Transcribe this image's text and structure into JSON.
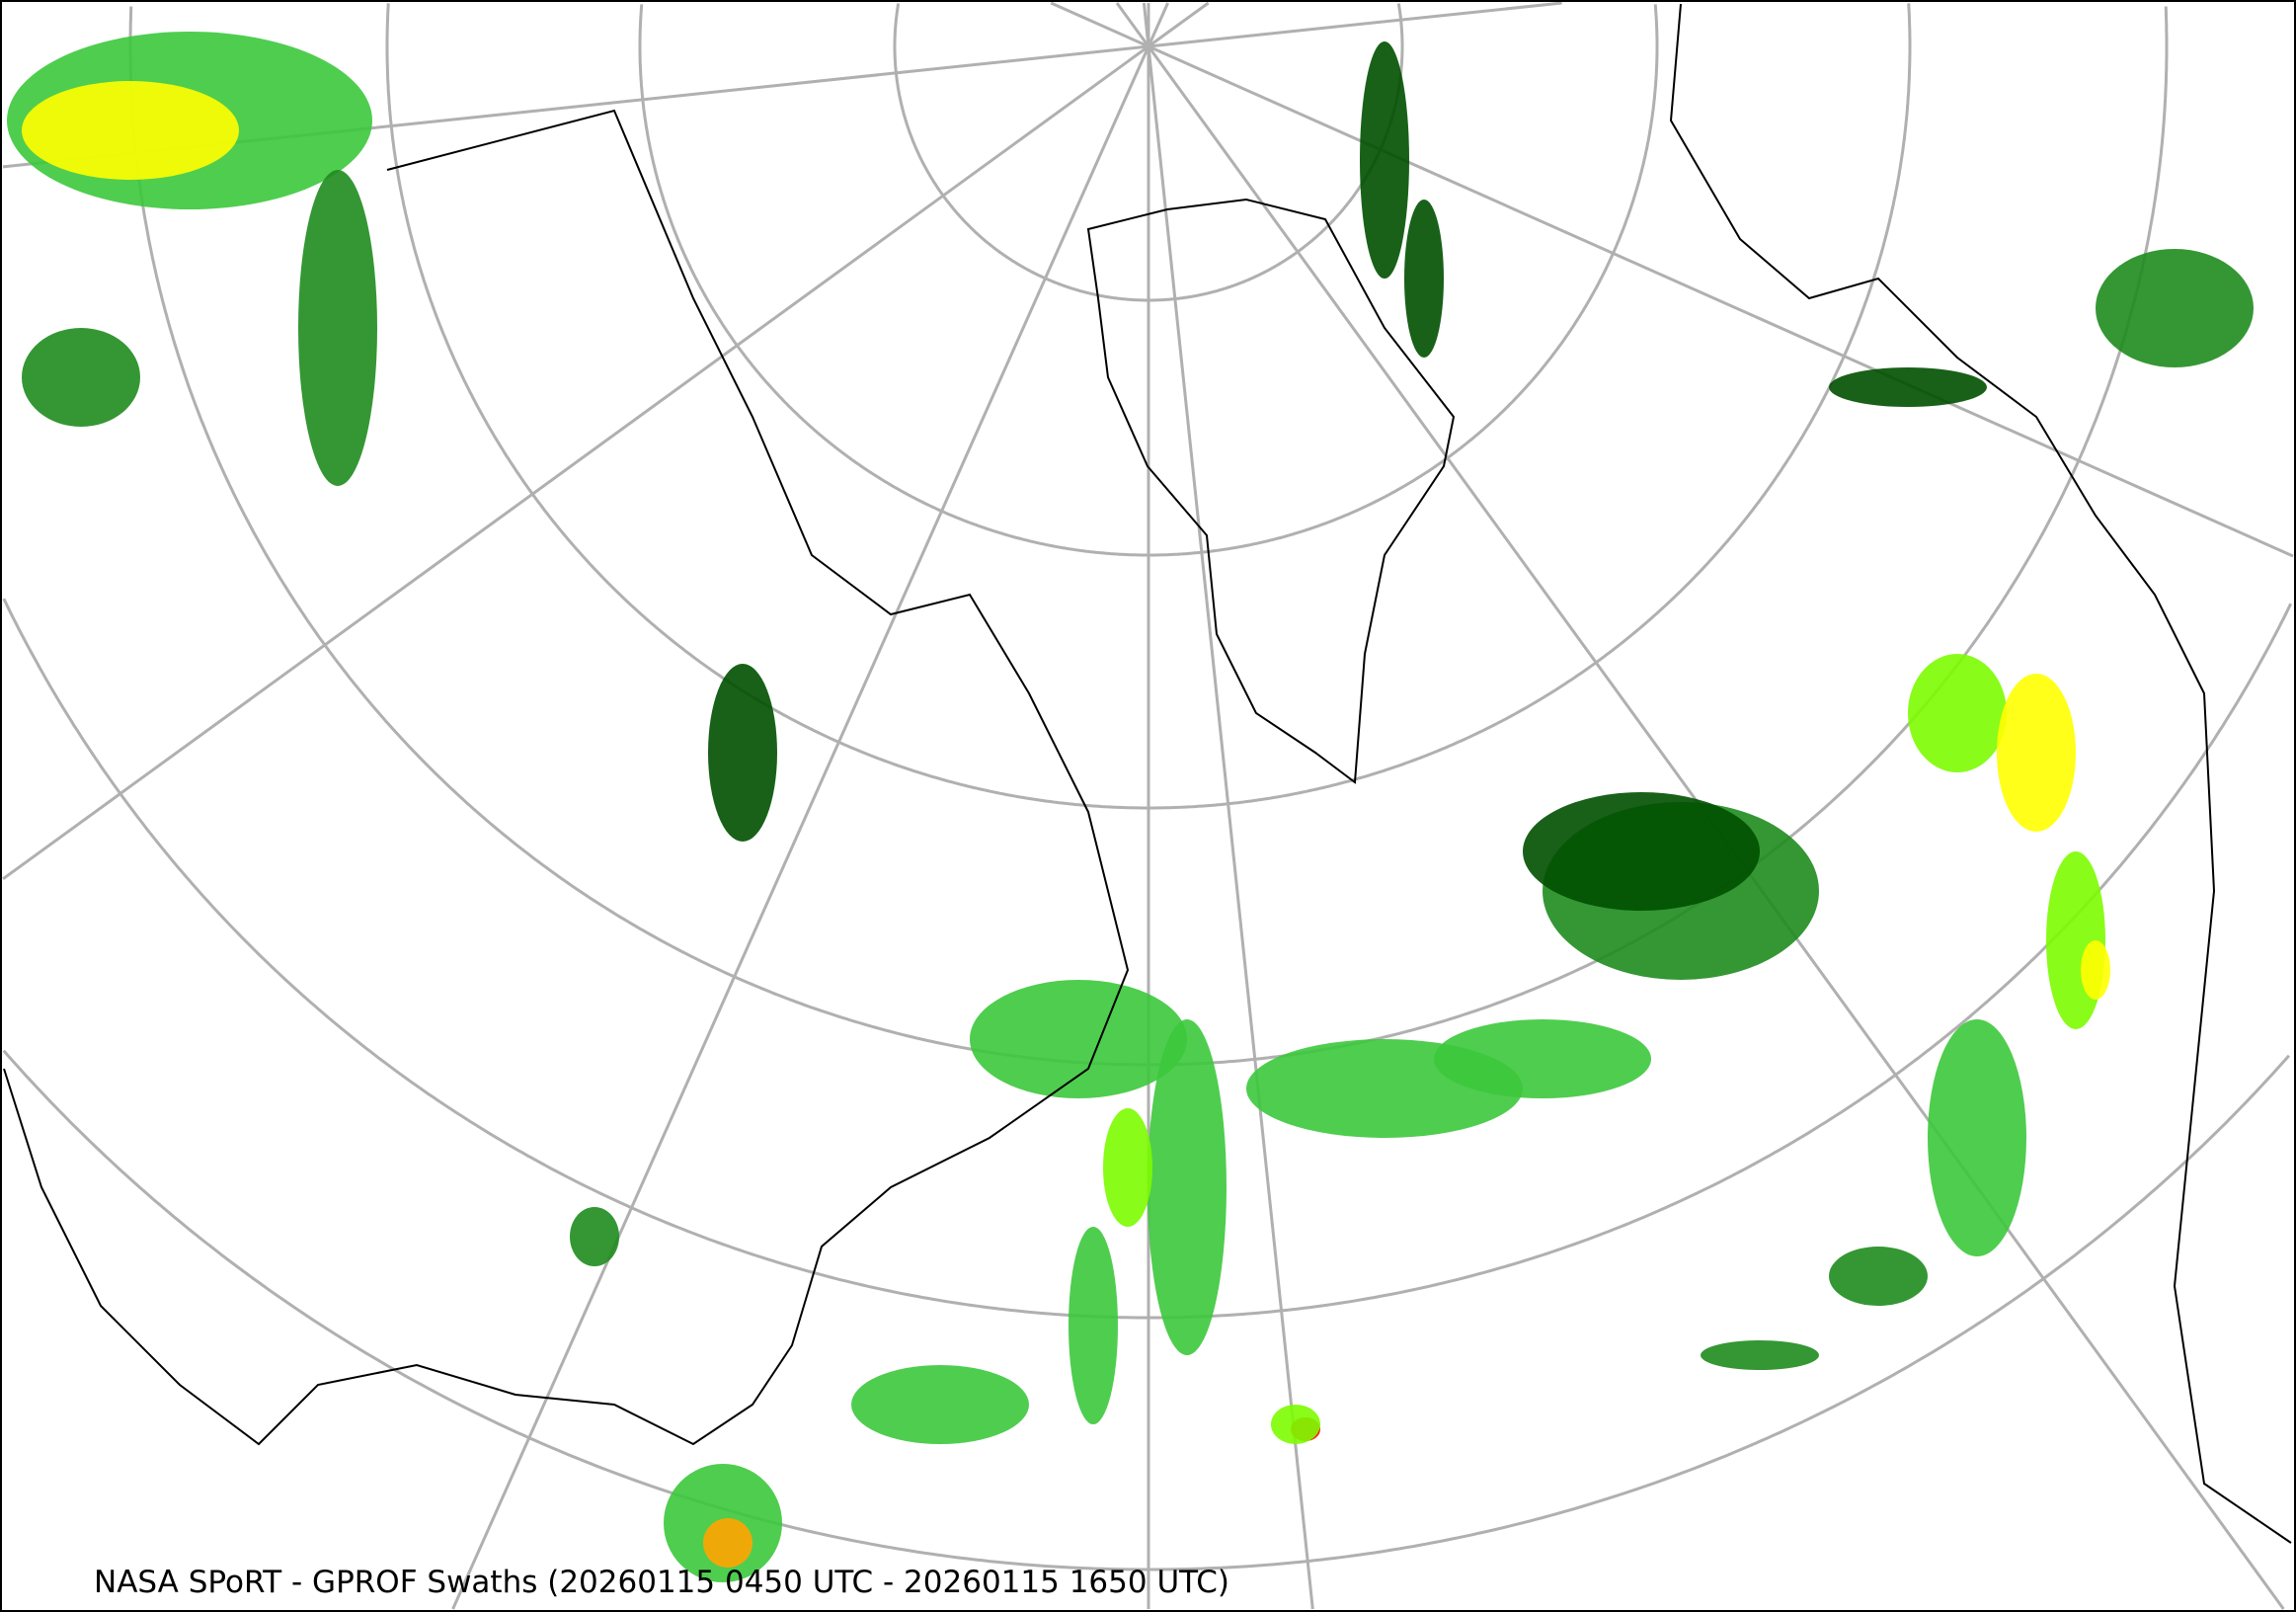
{
  "map": {
    "title": "NASA SPoRT - GPROF Swaths (20260115 0450 UTC - 20260115 1650 UTC)",
    "projection": "north polar stereographic",
    "graticule_color": "#b0b0b0",
    "coastline_color": "#000000",
    "precip_colors": [
      "#005000",
      "#1e8c1e",
      "#3cc83c",
      "#7cfc00",
      "#ffff00",
      "#ffa500",
      "#ff0000"
    ]
  }
}
